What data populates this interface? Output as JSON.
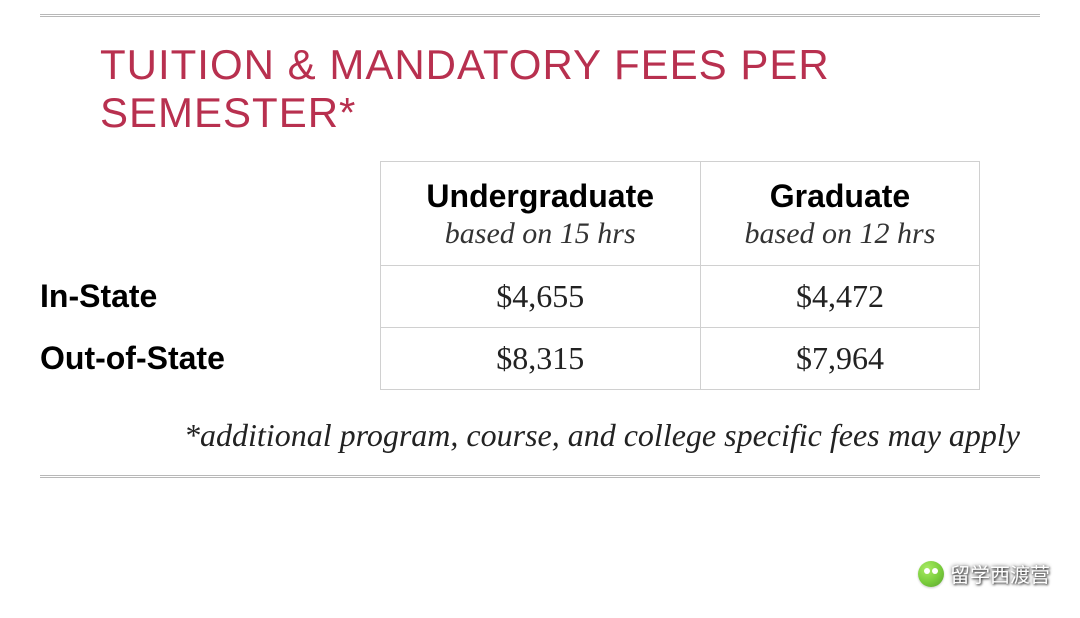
{
  "title": "TUITION & MANDATORY FEES PER SEMESTER*",
  "title_color": "#b8304f",
  "title_fontsize": 42,
  "table": {
    "columns": [
      {
        "header": "Undergraduate",
        "subheader": "based on 15 hrs"
      },
      {
        "header": "Graduate",
        "subheader": "based on 12 hrs"
      }
    ],
    "rows": [
      {
        "label": "In-State",
        "values": [
          "$4,655",
          "$4,472"
        ]
      },
      {
        "label": "Out-of-State",
        "values": [
          "$8,315",
          "$7,964"
        ]
      }
    ],
    "border_color": "#d0d0d0",
    "header_font": {
      "main_size": 32,
      "main_weight": 700,
      "sub_size": 30,
      "sub_style": "italic"
    },
    "cell_font": {
      "size": 32,
      "family": "Georgia"
    },
    "rowlabel_font": {
      "size": 32,
      "weight": 700,
      "family": "Arial"
    }
  },
  "footnote": "*additional program, course, and college specific fees may apply",
  "footnote_font": {
    "size": 32,
    "style": "italic",
    "align": "right"
  },
  "rule_color": "#b8b8b8",
  "background_color": "#ffffff",
  "watermark": {
    "text": "留学西渡营",
    "icon_colors": [
      "#9be84a",
      "#62c41a",
      "#3d8f0c"
    ]
  }
}
